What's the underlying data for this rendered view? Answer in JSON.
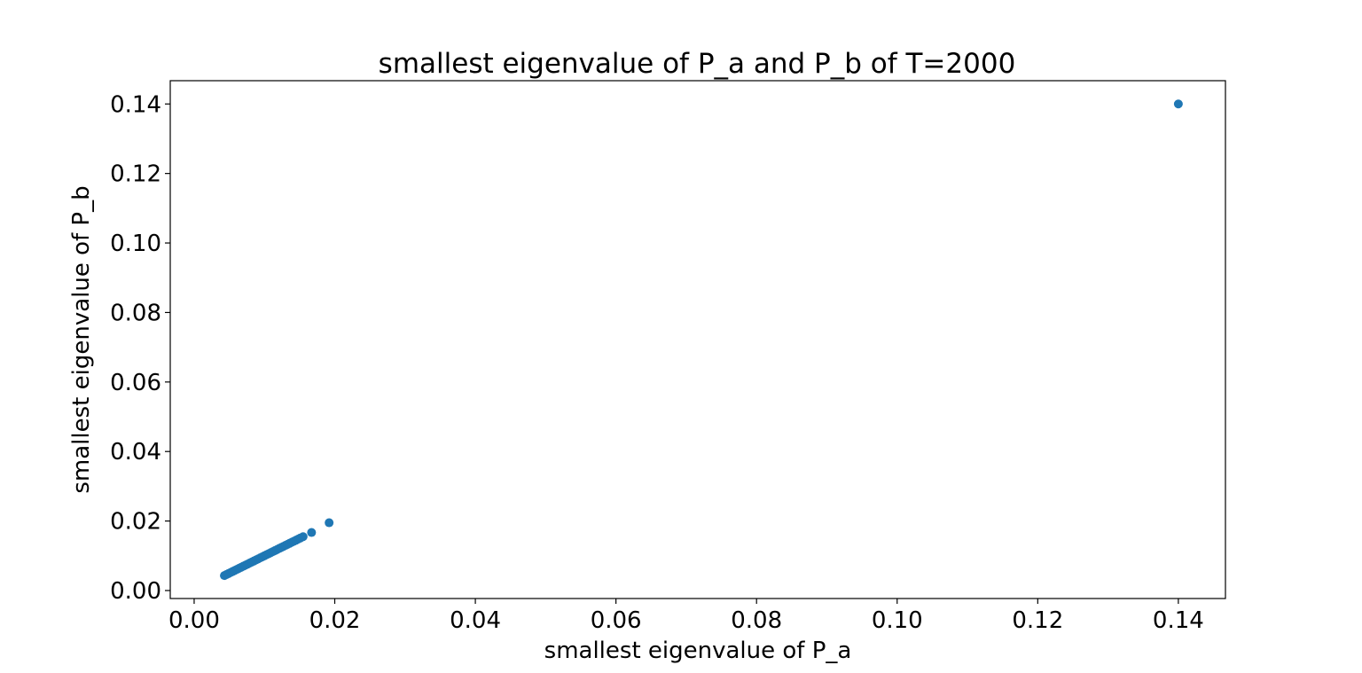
{
  "chart_data": {
    "type": "scatter",
    "title": "smallest eigenvalue of P_a and P_b of T=2000",
    "xlabel": "smallest eigenvalue of P_a",
    "ylabel": "smallest eigenvalue of P_b",
    "xlim": [
      -0.0034,
      0.1467
    ],
    "ylim": [
      -0.0023,
      0.1467
    ],
    "grid": false,
    "marker_color": "#1f77b4",
    "x_ticks": [
      "0.00",
      "0.02",
      "0.04",
      "0.06",
      "0.08",
      "0.10",
      "0.12",
      "0.14"
    ],
    "x_tick_values": [
      0.0,
      0.02,
      0.04,
      0.06,
      0.08,
      0.1,
      0.12,
      0.14
    ],
    "y_ticks": [
      "0.00",
      "0.02",
      "0.04",
      "0.06",
      "0.08",
      "0.10",
      "0.12",
      "0.14"
    ],
    "y_tick_values": [
      0.0,
      0.02,
      0.04,
      0.06,
      0.08,
      0.1,
      0.12,
      0.14
    ],
    "series": [
      {
        "x": [
          0.0043,
          0.0046,
          0.0049,
          0.0052,
          0.0055,
          0.0058,
          0.0061,
          0.0064,
          0.0067,
          0.007,
          0.0073,
          0.0076,
          0.0079,
          0.0082,
          0.0085,
          0.0088,
          0.0091,
          0.0094,
          0.0097,
          0.01,
          0.0103,
          0.0106,
          0.0109,
          0.0112,
          0.0115,
          0.0118,
          0.0121,
          0.0124,
          0.0127,
          0.013,
          0.0133,
          0.0136,
          0.0139,
          0.0142,
          0.0145,
          0.0148,
          0.0151,
          0.0155,
          0.0167,
          0.0192,
          0.14
        ],
        "y": [
          0.0043,
          0.0046,
          0.0049,
          0.0052,
          0.0055,
          0.0058,
          0.0061,
          0.0064,
          0.0067,
          0.007,
          0.0073,
          0.0076,
          0.0079,
          0.0082,
          0.0085,
          0.0088,
          0.0091,
          0.0094,
          0.0097,
          0.01,
          0.0103,
          0.0106,
          0.0109,
          0.0112,
          0.0115,
          0.0118,
          0.0121,
          0.0124,
          0.0127,
          0.013,
          0.0133,
          0.0136,
          0.0139,
          0.0142,
          0.0145,
          0.0148,
          0.0151,
          0.0155,
          0.0167,
          0.0195,
          0.14
        ]
      }
    ]
  }
}
